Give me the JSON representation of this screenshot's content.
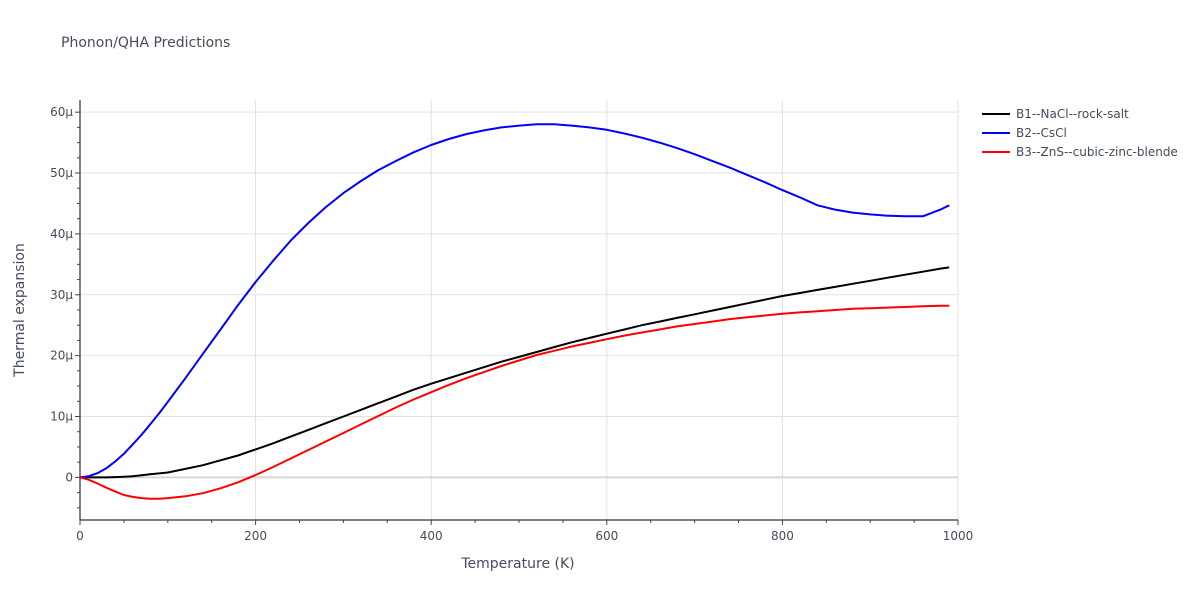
{
  "chart_data": {
    "type": "line",
    "title": "Phonon/QHA Predictions",
    "xlabel": "Temperature (K)",
    "ylabel": "Thermal expansion",
    "xlim": [
      0,
      1000
    ],
    "ylim": [
      -7,
      62
    ],
    "y_unit_suffix": "μ",
    "x_ticks": [
      0,
      200,
      400,
      600,
      800,
      1000
    ],
    "y_ticks": [
      0,
      10,
      20,
      30,
      40,
      50,
      60
    ],
    "grid": true,
    "legend_position": "top-right",
    "x": [
      0,
      10,
      20,
      30,
      40,
      50,
      60,
      70,
      80,
      90,
      100,
      120,
      140,
      160,
      180,
      200,
      220,
      240,
      260,
      280,
      300,
      320,
      340,
      360,
      380,
      400,
      420,
      440,
      460,
      480,
      500,
      520,
      540,
      560,
      580,
      600,
      620,
      640,
      660,
      680,
      700,
      720,
      740,
      760,
      780,
      800,
      820,
      840,
      860,
      880,
      900,
      920,
      940,
      960,
      980,
      990
    ],
    "series": [
      {
        "name": "B1--NaCl--rock-salt",
        "color": "#000000",
        "values": [
          0,
          0,
          0,
          0,
          0.05,
          0.1,
          0.2,
          0.35,
          0.5,
          0.65,
          0.8,
          1.4,
          2.0,
          2.8,
          3.6,
          4.6,
          5.6,
          6.7,
          7.8,
          8.9,
          10.0,
          11.1,
          12.2,
          13.3,
          14.4,
          15.4,
          16.3,
          17.2,
          18.1,
          19.0,
          19.8,
          20.6,
          21.4,
          22.2,
          22.9,
          23.6,
          24.3,
          25.0,
          25.6,
          26.2,
          26.8,
          27.4,
          28.0,
          28.6,
          29.2,
          29.8,
          30.3,
          30.8,
          31.3,
          31.8,
          32.3,
          32.8,
          33.3,
          33.8,
          34.3,
          34.5
        ]
      },
      {
        "name": "B2--CsCl",
        "color": "#0000ff",
        "values": [
          0,
          0.2,
          0.7,
          1.5,
          2.6,
          3.9,
          5.4,
          7.0,
          8.7,
          10.5,
          12.4,
          16.3,
          20.3,
          24.3,
          28.3,
          32.1,
          35.6,
          38.9,
          41.8,
          44.4,
          46.7,
          48.7,
          50.5,
          52.0,
          53.4,
          54.6,
          55.6,
          56.4,
          57.0,
          57.5,
          57.8,
          58.0,
          58.0,
          57.8,
          57.5,
          57.1,
          56.5,
          55.8,
          55.0,
          54.1,
          53.1,
          52.0,
          50.9,
          49.7,
          48.5,
          47.2,
          46.0,
          44.7,
          44.0,
          43.5,
          43.2,
          43.0,
          42.9,
          42.9,
          44.0,
          44.7
        ]
      },
      {
        "name": "B3--ZnS--cubic-zinc-blende",
        "color": "#ff0000",
        "values": [
          0,
          -0.4,
          -1.0,
          -1.7,
          -2.3,
          -2.9,
          -3.2,
          -3.4,
          -3.5,
          -3.5,
          -3.4,
          -3.1,
          -2.6,
          -1.8,
          -0.8,
          0.4,
          1.7,
          3.1,
          4.5,
          5.9,
          7.3,
          8.7,
          10.1,
          11.5,
          12.8,
          14.0,
          15.2,
          16.3,
          17.3,
          18.3,
          19.2,
          20.1,
          20.8,
          21.5,
          22.1,
          22.7,
          23.3,
          23.8,
          24.3,
          24.8,
          25.2,
          25.6,
          26.0,
          26.3,
          26.6,
          26.9,
          27.1,
          27.3,
          27.5,
          27.7,
          27.8,
          27.9,
          28.0,
          28.1,
          28.2,
          28.2
        ]
      }
    ]
  }
}
